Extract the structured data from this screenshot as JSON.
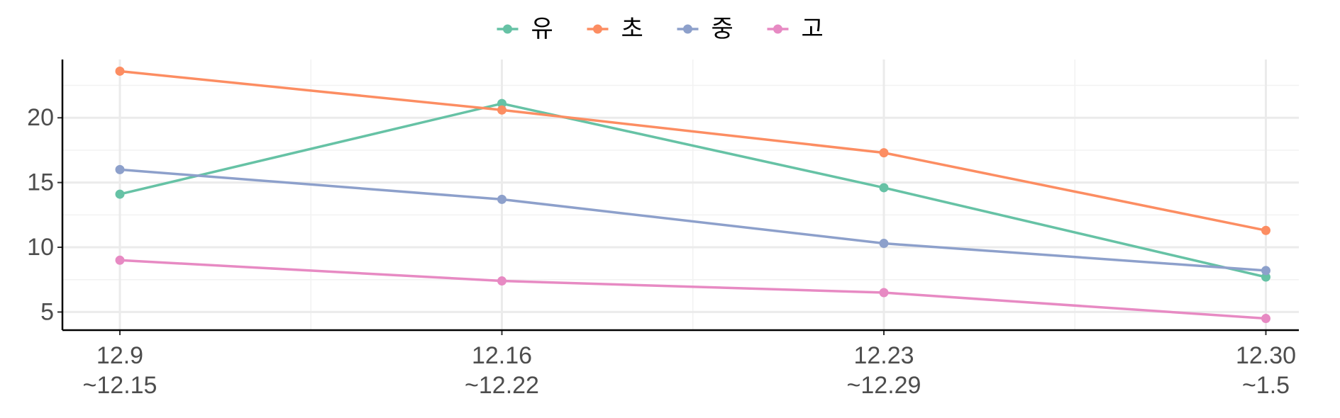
{
  "chart_data": {
    "type": "line",
    "categories": [
      [
        "12.9",
        "~12.15"
      ],
      [
        "12.16",
        "~12.22"
      ],
      [
        "12.23",
        "~12.29"
      ],
      [
        "12.30",
        "~1.5"
      ]
    ],
    "series": [
      {
        "name": "유",
        "color": "#66c2a5",
        "values": [
          14.1,
          21.1,
          14.6,
          7.7
        ]
      },
      {
        "name": "초",
        "color": "#fc8d62",
        "values": [
          23.6,
          20.6,
          17.3,
          11.3
        ]
      },
      {
        "name": "중",
        "color": "#8da0cb",
        "values": [
          16.0,
          13.7,
          10.3,
          8.2
        ]
      },
      {
        "name": "고",
        "color": "#e78ac3",
        "values": [
          9.0,
          7.4,
          6.5,
          4.5
        ]
      }
    ],
    "ylim": [
      3.6,
      24.5
    ],
    "yticks": [
      5,
      10,
      15,
      20
    ],
    "grid": true,
    "legend": "top"
  }
}
